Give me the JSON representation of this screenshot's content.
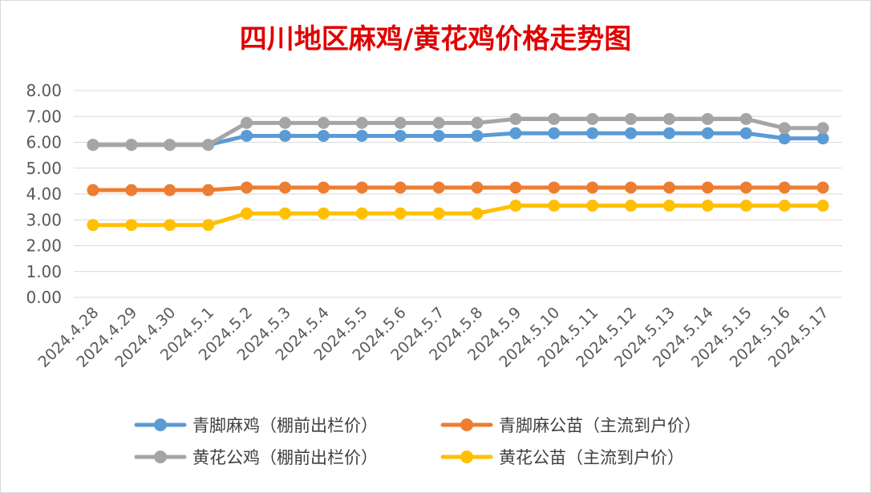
{
  "chart_data": {
    "type": "line",
    "title": "四川地区麻鸡/黄花鸡价格走势图",
    "xlabel": "",
    "ylabel": "",
    "ylim": [
      0,
      8
    ],
    "yticks": [
      "0.00",
      "1.00",
      "2.00",
      "3.00",
      "4.00",
      "5.00",
      "6.00",
      "7.00",
      "8.00"
    ],
    "grid": true,
    "legend_position": "bottom",
    "categories": [
      "2024.4.28",
      "2024.4.29",
      "2024.4.30",
      "2024.5.1",
      "2024.5.2",
      "2024.5.3",
      "2024.5.4",
      "2024.5.5",
      "2024.5.6",
      "2024.5.7",
      "2024.5.8",
      "2024.5.9",
      "2024.5.10",
      "2024.5.11",
      "2024.5.12",
      "2024.5.13",
      "2024.5.14",
      "2024.5.15",
      "2024.5.16",
      "2024.5.17"
    ],
    "series": [
      {
        "name": "青脚麻鸡（棚前出栏价）",
        "color": "#5b9bd5",
        "values": [
          5.9,
          5.9,
          5.9,
          5.9,
          6.25,
          6.25,
          6.25,
          6.25,
          6.25,
          6.25,
          6.25,
          6.35,
          6.35,
          6.35,
          6.35,
          6.35,
          6.35,
          6.35,
          6.15,
          6.15
        ]
      },
      {
        "name": "青脚麻公苗（主流到户价）",
        "color": "#ed7d31",
        "values": [
          4.15,
          4.15,
          4.15,
          4.15,
          4.25,
          4.25,
          4.25,
          4.25,
          4.25,
          4.25,
          4.25,
          4.25,
          4.25,
          4.25,
          4.25,
          4.25,
          4.25,
          4.25,
          4.25,
          4.25
        ]
      },
      {
        "name": "黄花公鸡（棚前出栏价）",
        "color": "#a5a5a5",
        "values": [
          5.9,
          5.9,
          5.9,
          5.9,
          6.75,
          6.75,
          6.75,
          6.75,
          6.75,
          6.75,
          6.75,
          6.9,
          6.9,
          6.9,
          6.9,
          6.9,
          6.9,
          6.9,
          6.55,
          6.55
        ]
      },
      {
        "name": "黄花公苗（主流到户价）",
        "color": "#ffc000",
        "values": [
          2.8,
          2.8,
          2.8,
          2.8,
          3.25,
          3.25,
          3.25,
          3.25,
          3.25,
          3.25,
          3.25,
          3.55,
          3.55,
          3.55,
          3.55,
          3.55,
          3.55,
          3.55,
          3.55,
          3.55
        ]
      }
    ]
  }
}
